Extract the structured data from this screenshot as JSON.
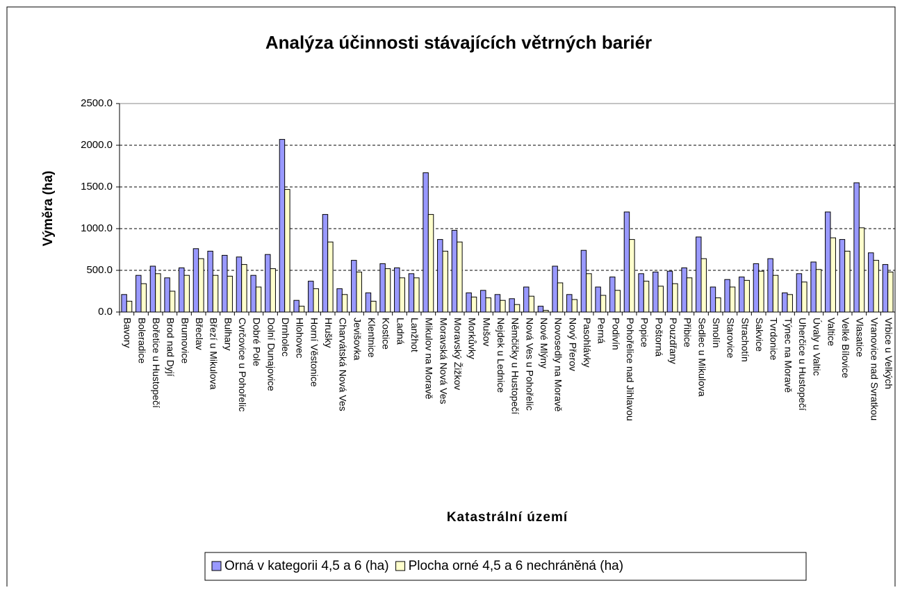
{
  "chart_data": {
    "type": "bar",
    "title": "Analýza účinnosti stávajících větrných bariér",
    "x_label": "Katastrální území",
    "y_label": "Výměra  (ha)",
    "categories": [
      "Bavory",
      "Boleradice",
      "Bořetice u Hustopečí",
      "Brod nad Dyjí",
      "Brumovice",
      "Břeclav",
      "Březí u Mikulova",
      "Bulhary",
      "Cvrčovice u Pohořelic",
      "Dobré Pole",
      "Dolní Dunajovice",
      "Drnholec",
      "Hlohovec",
      "Horní Věstonice",
      "Hrušky",
      "Charvátská Nová Ves",
      "Jevišovka",
      "Klentnice",
      "Kostice",
      "Ladná",
      "Lanžhot",
      "Mikulov na Moravě",
      "Moravská Nová Ves",
      "Moravský Žižkov",
      "Morkůvky",
      "Mušov",
      "Nejdek u Lednice",
      "Němčičky u Hustopečí",
      "Nová Ves u Pohořelic",
      "Nové Mlýny",
      "Novosedly na Moravě",
      "Nový Přerov",
      "Pasohlávky",
      "Perná",
      "Podivín",
      "Pohořelice nad Jihlavou",
      "Popice",
      "Poštorná",
      "Pouzdřany",
      "Přibice",
      "Sedlec u Mikulova",
      "Smolín",
      "Starovice",
      "Strachotín",
      "Sakvice",
      "Tvrdonice",
      "Týnec na Moravě",
      "Uherčice u Hustopečí",
      "Úvaly u Valtic",
      "Valtice",
      "Velké Bílovice",
      "Vlasatice",
      "Vranovice nad Svratkou",
      "Vrbice u Velkých"
    ],
    "series": [
      {
        "name": "Orná v kategorii 4,5 a 6 (ha)",
        "color": "#9999ff",
        "values": [
          210,
          440,
          550,
          410,
          530,
          760,
          730,
          680,
          660,
          440,
          690,
          2070,
          140,
          370,
          1170,
          280,
          620,
          230,
          580,
          530,
          460,
          1670,
          870,
          980,
          230,
          260,
          210,
          160,
          300,
          70,
          550,
          210,
          740,
          300,
          420,
          1200,
          460,
          480,
          490,
          530,
          900,
          300,
          390,
          420,
          580,
          640,
          230,
          460,
          600,
          1200,
          870,
          1550,
          710,
          570
        ]
      },
      {
        "name": "Plocha orné 4,5 a 6 nechráněná (ha)",
        "color": "#ffffcc",
        "values": [
          130,
          340,
          460,
          250,
          440,
          640,
          440,
          430,
          570,
          300,
          520,
          1470,
          70,
          280,
          840,
          210,
          480,
          130,
          520,
          410,
          410,
          1170,
          730,
          840,
          180,
          170,
          140,
          90,
          190,
          20,
          350,
          150,
          460,
          200,
          260,
          870,
          370,
          310,
          340,
          410,
          640,
          170,
          300,
          380,
          490,
          440,
          210,
          360,
          510,
          890,
          730,
          1010,
          620,
          480
        ]
      }
    ],
    "ylim": [
      0,
      2500
    ],
    "yticks": [
      {
        "value": 0,
        "label": "0.0"
      },
      {
        "value": 500,
        "label": "500.0"
      },
      {
        "value": 1000,
        "label": "1000.0"
      },
      {
        "value": 1500,
        "label": "1500.0"
      },
      {
        "value": 2000,
        "label": "2000.0"
      },
      {
        "value": 2500,
        "label": "2500.0"
      }
    ],
    "grid": true
  }
}
